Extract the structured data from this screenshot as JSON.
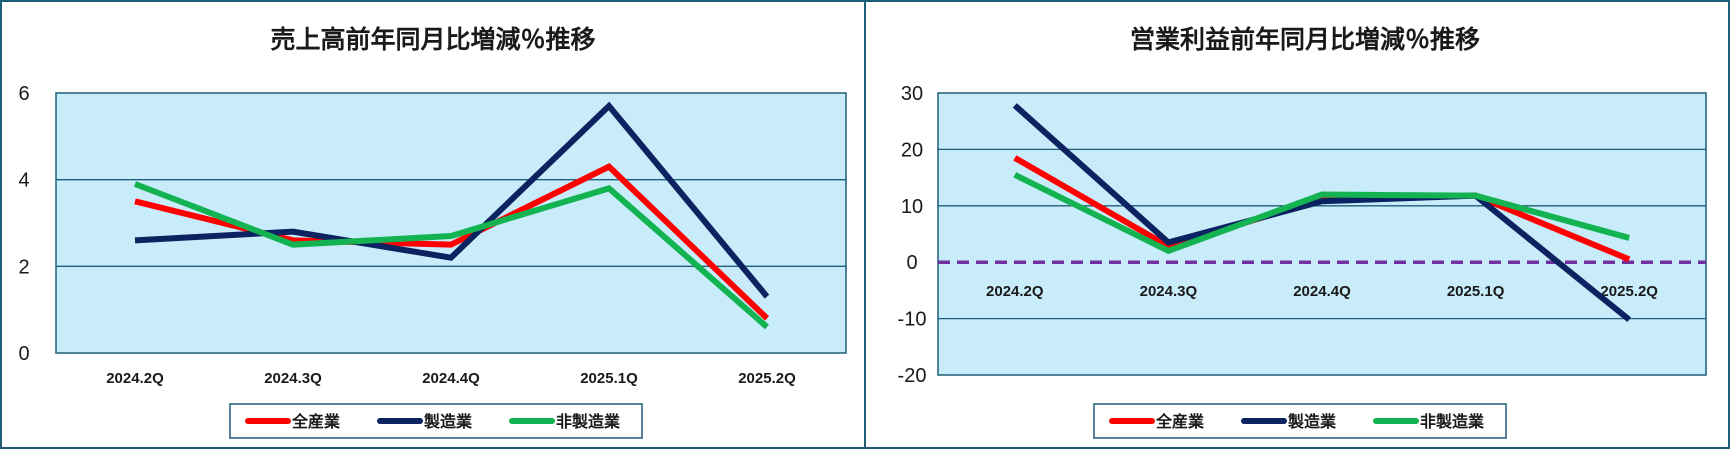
{
  "chart_data": [
    {
      "type": "line",
      "title": "売上高前年同月比増減％推移",
      "categories": [
        "2024.2Q",
        "2024.3Q",
        "2024.4Q",
        "2025.1Q",
        "2025.2Q"
      ],
      "ylim": [
        0,
        6
      ],
      "yticks": [
        "0",
        "2",
        "4",
        "6"
      ],
      "grid": true,
      "legend_position": "bottom",
      "series": [
        {
          "name": "全産業",
          "color": "#ff0000",
          "values": [
            3.5,
            2.6,
            2.5,
            4.3,
            0.8
          ]
        },
        {
          "name": "製造業",
          "color": "#0d2260",
          "values": [
            2.6,
            2.8,
            2.2,
            5.7,
            1.3
          ]
        },
        {
          "name": "非製造業",
          "color": "#12b350",
          "values": [
            3.9,
            2.5,
            2.7,
            3.8,
            0.6
          ]
        }
      ]
    },
    {
      "type": "line",
      "title": "営業利益前年同月比増減％推移",
      "categories": [
        "2024.2Q",
        "2024.3Q",
        "2024.4Q",
        "2025.1Q",
        "2025.2Q"
      ],
      "ylim": [
        -20,
        30
      ],
      "yticks": [
        "-20",
        "-10",
        "0",
        "10",
        "20",
        "30"
      ],
      "grid": true,
      "zero_line": "dashed",
      "legend_position": "bottom",
      "series": [
        {
          "name": "全産業",
          "color": "#ff0000",
          "values": [
            18.5,
            2.8,
            11.2,
            11.8,
            0.5
          ]
        },
        {
          "name": "製造業",
          "color": "#0d2260",
          "values": [
            27.8,
            3.5,
            10.8,
            11.8,
            -10.2
          ]
        },
        {
          "name": "非製造業",
          "color": "#12b350",
          "values": [
            15.5,
            2.0,
            12.0,
            11.8,
            4.3
          ]
        }
      ]
    }
  ]
}
